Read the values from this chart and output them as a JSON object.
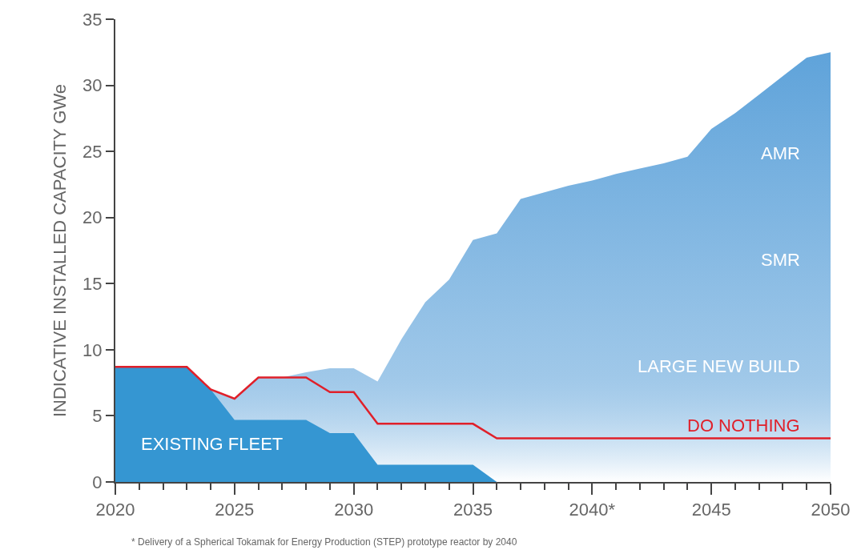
{
  "chart_data": {
    "type": "area",
    "ylabel": "INDICATIVE INSTALLED CAPACITY GWe",
    "x": [
      2020,
      2021,
      2022,
      2023,
      2024,
      2025,
      2026,
      2027,
      2028,
      2029,
      2030,
      2031,
      2032,
      2033,
      2034,
      2035,
      2036,
      2037,
      2038,
      2039,
      2040,
      2041,
      2042,
      2043,
      2044,
      2045,
      2046,
      2047,
      2048,
      2049,
      2050
    ],
    "series": [
      {
        "color": "#5fa3da",
        "values": [
          8.7,
          8.7,
          8.7,
          8.7,
          7.0,
          6.3,
          7.9,
          7.9,
          8.3,
          8.6,
          8.6,
          7.6,
          10.8,
          13.6,
          15.3,
          18.3,
          18.8,
          21.4,
          21.9,
          22.4,
          22.8,
          23.3,
          23.7,
          24.1,
          24.6,
          26.7,
          27.9,
          29.3,
          30.7,
          32.1,
          32.5
        ]
      },
      {
        "name": "EXISTING FLEET",
        "color": "#3596d2",
        "values": [
          8.7,
          8.7,
          8.7,
          8.7,
          7.0,
          4.7,
          4.7,
          4.7,
          4.7,
          3.7,
          3.7,
          1.3,
          1.3,
          1.3,
          1.3,
          1.3,
          0,
          null,
          null,
          null,
          null,
          null,
          null,
          null,
          null,
          null,
          null,
          null,
          null,
          null,
          null
        ]
      },
      {
        "name": "DO NOTHING",
        "type": "line",
        "color": "#e0202a",
        "values": [
          8.7,
          8.7,
          8.7,
          8.7,
          7.0,
          6.3,
          7.9,
          7.9,
          7.9,
          6.8,
          6.8,
          4.4,
          4.4,
          4.4,
          4.4,
          4.4,
          3.3,
          3.3,
          3.3,
          3.3,
          3.3,
          3.3,
          3.3,
          3.3,
          3.3,
          3.3,
          3.3,
          3.3,
          3.3,
          3.3,
          3.3
        ]
      }
    ],
    "annotations": [
      "AMR",
      "SMR",
      "LARGE NEW BUILD",
      "* Delivery of a Spherical Tokamak for Energy Production (STEP) prototype reactor by 2040"
    ],
    "xlim": [
      2020,
      2050
    ],
    "xticks": [
      2020,
      2025,
      2030,
      2035,
      {
        "value": 2040,
        "label": "2040*"
      },
      2045,
      2050
    ],
    "ylim": [
      0,
      35
    ],
    "yticks": [
      0,
      5,
      10,
      15,
      20,
      25,
      30,
      35
    ],
    "grid": false,
    "legend": false,
    "marker": "none",
    "line_style": "solid"
  }
}
